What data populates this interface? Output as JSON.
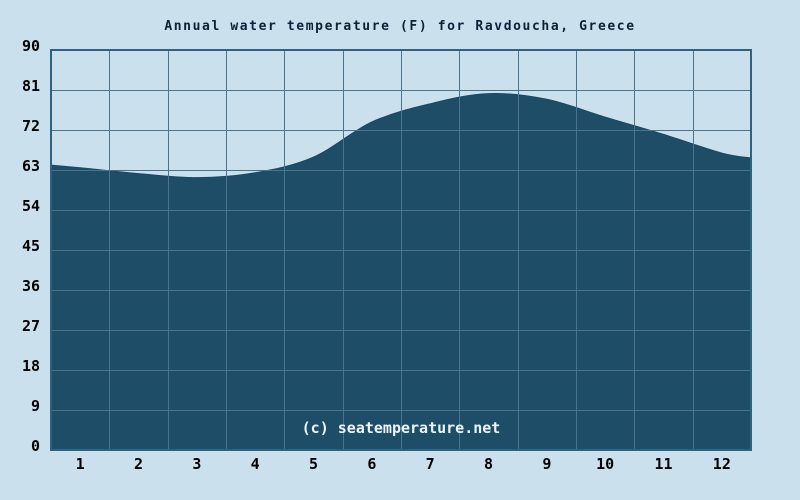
{
  "page": {
    "background_color": "#cbe0ed"
  },
  "chart_data": {
    "type": "area",
    "title": "Annual water temperature (F) for Ravdoucha, Greece",
    "series_name": "Water temperature (F)",
    "categories": [
      1,
      2,
      3,
      4,
      5,
      6,
      7,
      8,
      9,
      10,
      11,
      12
    ],
    "values": [
      63.5,
      62.2,
      61.3,
      62.4,
      65.9,
      73.8,
      77.9,
      80.2,
      78.9,
      74.9,
      71.0,
      66.8
    ],
    "edge_values": {
      "start": 64.1,
      "end": 65.7
    },
    "xlabel": "",
    "ylabel": "",
    "ylim": [
      0,
      90
    ],
    "yticks": [
      0,
      9,
      18,
      27,
      36,
      45,
      54,
      63,
      72,
      81,
      90
    ],
    "xticks": [
      "1",
      "2",
      "3",
      "4",
      "5",
      "6",
      "7",
      "8",
      "9",
      "10",
      "11",
      "12"
    ],
    "grid": true,
    "legend_position": "none",
    "watermark": "(c) seatemperature.net",
    "colors": {
      "background": "#cbe0ed",
      "area_fill": "#1e4d68",
      "area_edge": "#1b4862",
      "grid_line": "#4a748e",
      "plot_border": "#2f627e",
      "title_text": "#0d2137",
      "tick_text": "#000000",
      "watermark_text": "#edf4f8"
    }
  }
}
